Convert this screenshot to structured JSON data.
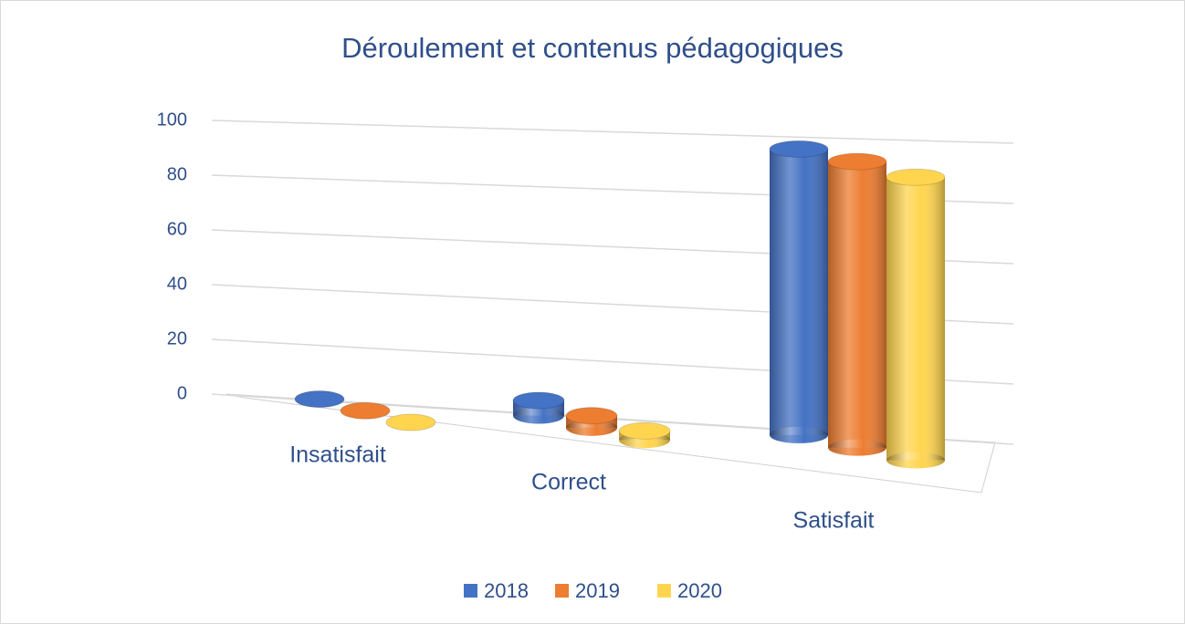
{
  "chart_data": {
    "type": "bar",
    "title": "Déroulement et contenus pédagogiques",
    "categories": [
      "Insatisfait",
      "Correct",
      "Satisfait"
    ],
    "series": [
      {
        "name": "2018",
        "color": "#4472c4",
        "values": [
          0,
          5,
          95
        ]
      },
      {
        "name": "2019",
        "color": "#ed7d31",
        "values": [
          0,
          4,
          95
        ]
      },
      {
        "name": "2020",
        "color": "#ffd54f",
        "values": [
          0,
          3,
          94
        ]
      }
    ],
    "ylim": [
      0,
      100
    ],
    "yticks": [
      0,
      20,
      40,
      60,
      80,
      100
    ],
    "grid": true,
    "legend": "bottom"
  }
}
